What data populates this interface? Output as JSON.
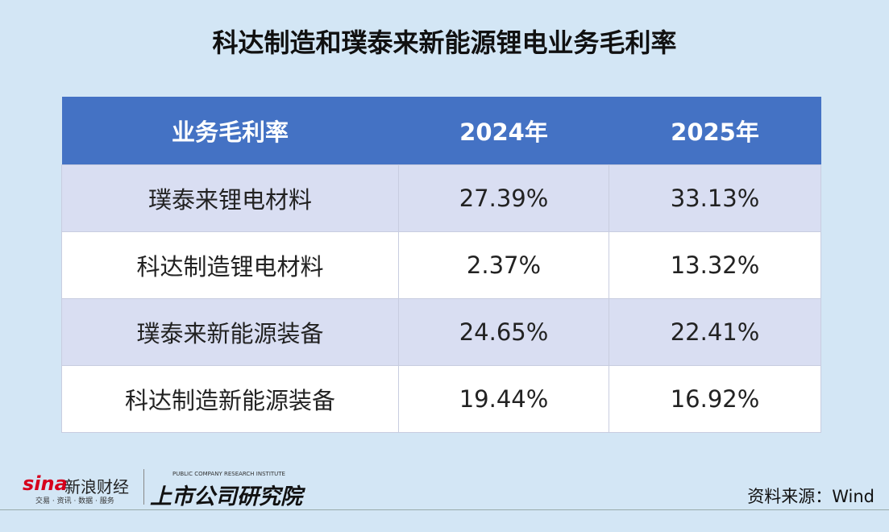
{
  "header": {
    "title": "科达制造和璞泰来新能源锂电业务毛利率"
  },
  "table": {
    "header": [
      "业务毛利率",
      "2024年",
      "2025年"
    ],
    "rows": [
      [
        "璞泰来锂电材料",
        "27.39%",
        "33.13%"
      ],
      [
        "科达制造锂电材料",
        "2.37%",
        "13.32%"
      ],
      [
        "璞泰来新能源装备",
        "24.65%",
        "22.41%"
      ],
      [
        "科达制造新能源装备",
        "19.44%",
        "16.92%"
      ]
    ]
  },
  "footer": {
    "logo_sina": "sina",
    "logo_sina_name": "新浪财经",
    "logo_sina_tagline": "交易 · 资讯 · 数据 · 服务",
    "logo_institute": "上市公司研究院",
    "logo_institute_en": "PUBLIC COMPANY RESEARCH INSTITUTE",
    "source": "资料来源：Wind"
  }
}
